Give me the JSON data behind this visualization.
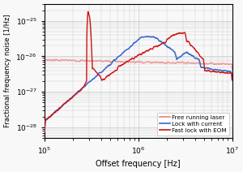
{
  "title": "",
  "xlabel": "Offset frequency [Hz]",
  "ylabel": "Fractional frequency noise [1/Hz]",
  "xlim": [
    100000.0,
    10000000.0
  ],
  "ylim": [
    5e-29,
    3e-25
  ],
  "legend": [
    "Free running laser",
    "Lock with current",
    "Fast lock with EOM"
  ],
  "colors": {
    "free_running": "#f08080",
    "lock_current": "#3366cc",
    "fast_lock": "#cc1111"
  },
  "grid_color": "#c8c8c8",
  "background_color": "#f8f8f8"
}
